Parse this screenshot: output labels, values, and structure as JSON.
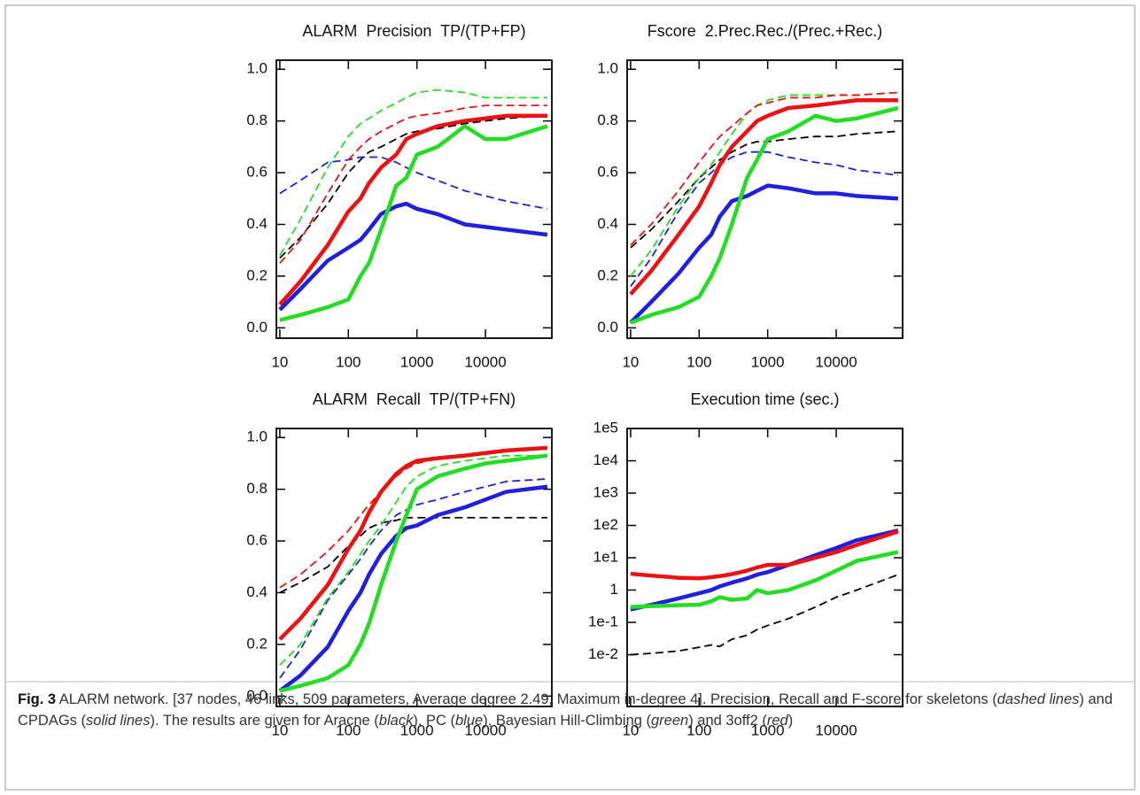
{
  "chart_data": [
    {
      "type": "line",
      "title": "ALARM  Precision  TP/(TP+FP)",
      "x": [
        10,
        20,
        50,
        100,
        150,
        200,
        300,
        500,
        700,
        1000,
        2000,
        5000,
        10000,
        20000,
        80000
      ],
      "xlog": true,
      "xlim": [
        8.9,
        93000
      ],
      "xticks": [
        10,
        100,
        1000,
        10000
      ],
      "ylim": [
        -0.04,
        1.035
      ],
      "yticks": [
        {
          "value": 0,
          "label": "0.0"
        },
        0.2,
        0.4,
        0.6,
        0.8,
        {
          "value": 1,
          "label": "1.0"
        }
      ],
      "series": [
        {
          "color": "#000000",
          "line_style": "dashed",
          "values": [
            0.27,
            0.35,
            0.48,
            0.6,
            0.65,
            0.68,
            0.7,
            0.73,
            0.75,
            0.76,
            0.77,
            0.79,
            0.8,
            0.81,
            0.82
          ]
        },
        {
          "color": "#1f1fe0",
          "line_style": "dashed",
          "values": [
            0.52,
            0.57,
            0.64,
            0.65,
            0.66,
            0.66,
            0.66,
            0.64,
            0.62,
            0.6,
            0.57,
            0.53,
            0.51,
            0.49,
            0.46
          ]
        },
        {
          "color": "#22dd22",
          "line_style": "dashed",
          "values": [
            0.28,
            0.42,
            0.62,
            0.74,
            0.79,
            0.81,
            0.84,
            0.87,
            0.89,
            0.91,
            0.92,
            0.91,
            0.89,
            0.89,
            0.89
          ]
        },
        {
          "color": "#ee1111",
          "line_style": "dashed",
          "values": [
            0.25,
            0.34,
            0.52,
            0.65,
            0.7,
            0.73,
            0.76,
            0.79,
            0.81,
            0.82,
            0.83,
            0.85,
            0.86,
            0.86,
            0.86
          ]
        },
        {
          "color": "#1f1fe0",
          "line_style": "solid",
          "values": [
            0.07,
            0.15,
            0.26,
            0.31,
            0.34,
            0.38,
            0.44,
            0.47,
            0.48,
            0.46,
            0.44,
            0.4,
            0.39,
            0.38,
            0.36
          ]
        },
        {
          "color": "#22dd22",
          "line_style": "solid",
          "values": [
            0.03,
            0.05,
            0.08,
            0.11,
            0.2,
            0.25,
            0.38,
            0.55,
            0.58,
            0.67,
            0.7,
            0.78,
            0.73,
            0.73,
            0.78
          ]
        },
        {
          "color": "#ee1111",
          "line_style": "solid",
          "values": [
            0.09,
            0.18,
            0.32,
            0.45,
            0.5,
            0.56,
            0.62,
            0.67,
            0.73,
            0.75,
            0.78,
            0.8,
            0.81,
            0.82,
            0.82
          ]
        }
      ]
    },
    {
      "type": "line",
      "title": "Fscore  2.Prec.Rec./(Prec.+Rec.)",
      "x": [
        10,
        20,
        50,
        100,
        150,
        200,
        300,
        500,
        700,
        1000,
        2000,
        5000,
        10000,
        20000,
        80000
      ],
      "xlog": true,
      "xlim": [
        8.9,
        93000
      ],
      "xticks": [
        10,
        100,
        1000,
        10000
      ],
      "ylim": [
        -0.04,
        1.035
      ],
      "yticks": [
        {
          "value": 0,
          "label": "0.0"
        },
        0.2,
        0.4,
        0.6,
        0.8,
        {
          "value": 1,
          "label": "1.0"
        }
      ],
      "series": [
        {
          "color": "#000000",
          "line_style": "dashed",
          "values": [
            0.31,
            0.38,
            0.49,
            0.58,
            0.62,
            0.65,
            0.68,
            0.71,
            0.72,
            0.72,
            0.73,
            0.74,
            0.74,
            0.75,
            0.76
          ]
        },
        {
          "color": "#1f1fe0",
          "line_style": "dashed",
          "values": [
            0.16,
            0.27,
            0.45,
            0.56,
            0.6,
            0.63,
            0.66,
            0.68,
            0.68,
            0.68,
            0.66,
            0.64,
            0.63,
            0.61,
            0.59
          ]
        },
        {
          "color": "#22dd22",
          "line_style": "dashed",
          "values": [
            0.2,
            0.3,
            0.47,
            0.58,
            0.63,
            0.68,
            0.75,
            0.83,
            0.86,
            0.88,
            0.9,
            0.9,
            0.9,
            0.9,
            0.91
          ]
        },
        {
          "color": "#ee1111",
          "line_style": "dashed",
          "values": [
            0.32,
            0.4,
            0.53,
            0.64,
            0.7,
            0.74,
            0.78,
            0.83,
            0.86,
            0.87,
            0.89,
            0.89,
            0.9,
            0.9,
            0.91
          ]
        },
        {
          "color": "#1f1fe0",
          "line_style": "solid",
          "values": [
            0.02,
            0.1,
            0.21,
            0.31,
            0.36,
            0.43,
            0.49,
            0.51,
            0.53,
            0.55,
            0.54,
            0.52,
            0.52,
            0.51,
            0.5
          ]
        },
        {
          "color": "#22dd22",
          "line_style": "solid",
          "values": [
            0.02,
            0.05,
            0.08,
            0.12,
            0.2,
            0.27,
            0.4,
            0.58,
            0.65,
            0.73,
            0.76,
            0.82,
            0.8,
            0.81,
            0.85
          ]
        },
        {
          "color": "#ee1111",
          "line_style": "solid",
          "values": [
            0.13,
            0.22,
            0.36,
            0.47,
            0.56,
            0.63,
            0.7,
            0.76,
            0.8,
            0.82,
            0.85,
            0.86,
            0.87,
            0.88,
            0.88
          ]
        }
      ]
    },
    {
      "type": "line",
      "title": "ALARM  Recall  TP/(TP+FN)",
      "x": [
        10,
        20,
        50,
        100,
        150,
        200,
        300,
        500,
        700,
        1000,
        2000,
        5000,
        10000,
        20000,
        80000
      ],
      "xlog": true,
      "xlim": [
        8.9,
        93000
      ],
      "xticks": [
        10,
        100,
        1000,
        10000
      ],
      "ylim": [
        -0.04,
        1.035
      ],
      "yticks": [
        {
          "value": 0,
          "label": "0.0"
        },
        0.2,
        0.4,
        0.6,
        0.8,
        {
          "value": 1,
          "label": "1.0"
        }
      ],
      "series": [
        {
          "color": "#000000",
          "line_style": "dashed",
          "values": [
            0.4,
            0.44,
            0.5,
            0.58,
            0.62,
            0.65,
            0.67,
            0.68,
            0.69,
            0.69,
            0.69,
            0.69,
            0.69,
            0.69,
            0.69
          ]
        },
        {
          "color": "#1f1fe0",
          "line_style": "dashed",
          "values": [
            0.07,
            0.18,
            0.37,
            0.47,
            0.53,
            0.58,
            0.64,
            0.7,
            0.72,
            0.74,
            0.76,
            0.79,
            0.81,
            0.83,
            0.84
          ]
        },
        {
          "color": "#22dd22",
          "line_style": "dashed",
          "values": [
            0.12,
            0.2,
            0.38,
            0.48,
            0.55,
            0.6,
            0.66,
            0.75,
            0.81,
            0.85,
            0.89,
            0.91,
            0.92,
            0.93,
            0.93
          ]
        },
        {
          "color": "#ee1111",
          "line_style": "dashed",
          "values": [
            0.42,
            0.47,
            0.56,
            0.64,
            0.7,
            0.74,
            0.79,
            0.85,
            0.88,
            0.9,
            0.92,
            0.93,
            0.94,
            0.95,
            0.96
          ]
        },
        {
          "color": "#1f1fe0",
          "line_style": "solid",
          "values": [
            0.02,
            0.08,
            0.19,
            0.33,
            0.4,
            0.47,
            0.55,
            0.62,
            0.65,
            0.66,
            0.7,
            0.73,
            0.76,
            0.79,
            0.81
          ]
        },
        {
          "color": "#22dd22",
          "line_style": "solid",
          "values": [
            0.02,
            0.04,
            0.07,
            0.12,
            0.2,
            0.28,
            0.43,
            0.6,
            0.7,
            0.8,
            0.85,
            0.88,
            0.9,
            0.91,
            0.93
          ]
        },
        {
          "color": "#ee1111",
          "line_style": "solid",
          "values": [
            0.22,
            0.3,
            0.43,
            0.57,
            0.64,
            0.71,
            0.79,
            0.86,
            0.89,
            0.91,
            0.92,
            0.93,
            0.94,
            0.95,
            0.96
          ]
        }
      ]
    },
    {
      "type": "line",
      "title": "Execution time (sec.)",
      "x": [
        10,
        20,
        50,
        100,
        150,
        200,
        300,
        500,
        700,
        1000,
        2000,
        5000,
        10000,
        20000,
        80000
      ],
      "xlog": true,
      "xlim": [
        8.9,
        93000
      ],
      "xticks": [
        10,
        100,
        1000,
        10000
      ],
      "ylog": true,
      "ylim": [
        0.00025,
        100000
      ],
      "yticks": [
        {
          "value": 0.01,
          "label": "1e-2"
        },
        {
          "value": 0.1,
          "label": "1e-1"
        },
        1,
        {
          "value": 10,
          "label": "1e1"
        },
        {
          "value": 100,
          "label": "1e2"
        },
        {
          "value": 1000,
          "label": "1e3"
        },
        {
          "value": 10000,
          "label": "1e4"
        },
        {
          "value": 100000,
          "label": "1e5"
        }
      ],
      "series": [
        {
          "color": "#000000",
          "line_style": "dashed",
          "values": [
            0.01,
            0.011,
            0.013,
            0.017,
            0.02,
            0.018,
            0.03,
            0.04,
            0.06,
            0.08,
            0.13,
            0.3,
            0.6,
            1.0,
            3
          ]
        },
        {
          "color": "#1f1fe0",
          "line_style": "solid",
          "values": [
            0.25,
            0.35,
            0.55,
            0.8,
            1.0,
            1.3,
            1.7,
            2.3,
            3.0,
            3.6,
            6,
            12,
            20,
            35,
            70
          ]
        },
        {
          "color": "#ee1111",
          "line_style": "solid",
          "values": [
            3.2,
            2.8,
            2.4,
            2.3,
            2.5,
            2.7,
            3.1,
            4,
            5,
            6,
            6,
            10,
            15,
            25,
            65
          ]
        },
        {
          "color": "#22dd22",
          "line_style": "solid",
          "values": [
            0.3,
            0.32,
            0.34,
            0.35,
            0.45,
            0.6,
            0.5,
            0.55,
            1.0,
            0.8,
            1.0,
            2,
            4,
            8,
            15
          ]
        }
      ]
    }
  ],
  "caption": {
    "label": "Fig. 3",
    "parts": [
      "ALARM network. [37 nodes, 46 links, 509 parameters, Average degree 2.49, Maximum in-degree 4]. Precision, Recall and F-score for skeletons (",
      "dashed lines",
      ") and CPDAGs (",
      "solid lines",
      "). The results are given for Aracne (",
      "black",
      "), PC (",
      "blue",
      "), Bayesian Hill-Climbing (",
      "green",
      ") and 3off2 (",
      "red",
      ")"
    ]
  }
}
